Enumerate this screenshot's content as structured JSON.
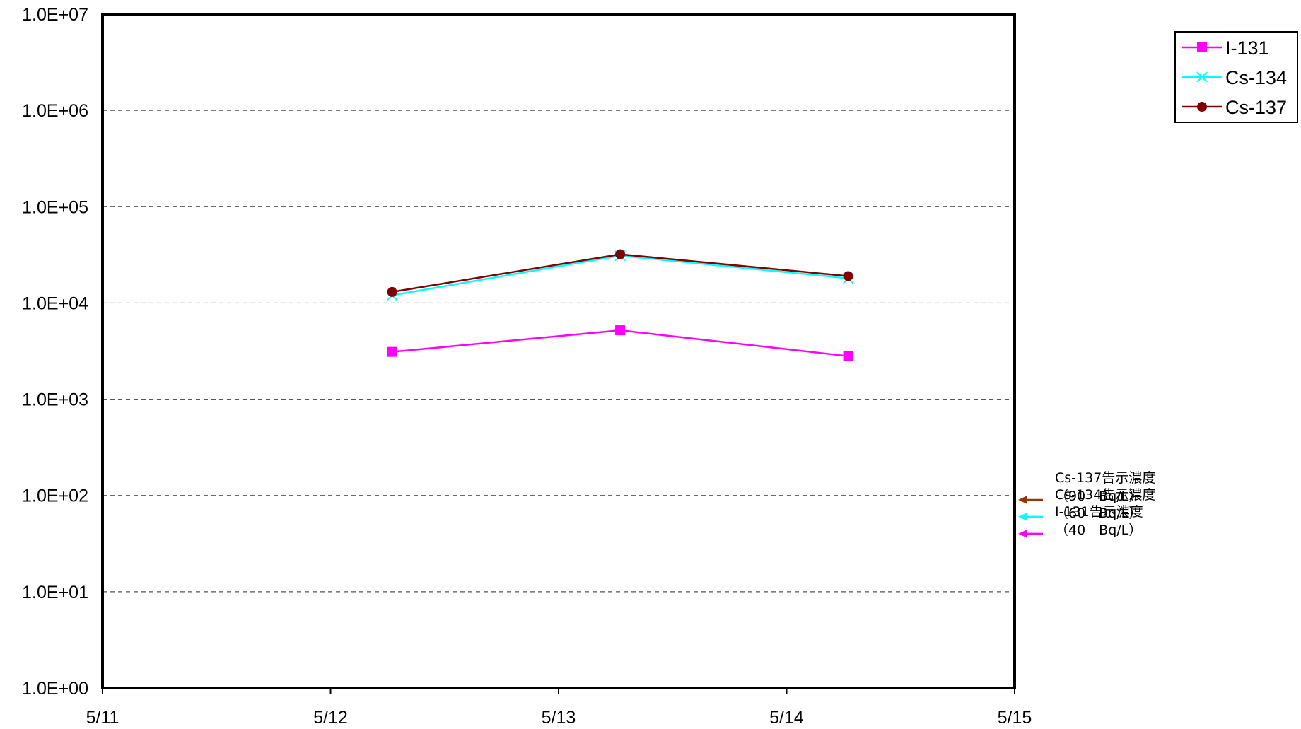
{
  "chart_data": {
    "type": "line",
    "y_scale": "log",
    "ylim": [
      1,
      10000000
    ],
    "y_ticks": [
      "1.0E+00",
      "1.0E+01",
      "1.0E+02",
      "1.0E+03",
      "1.0E+04",
      "1.0E+05",
      "1.0E+06",
      "1.0E+07"
    ],
    "x_ticks": [
      "5/11",
      "5/12",
      "5/13",
      "5/14",
      "5/15"
    ],
    "x": [
      "5/12",
      "5/13",
      "5/14"
    ],
    "grid": "horizontal dashed",
    "legend_position": "top-right",
    "series": [
      {
        "name": "I-131",
        "color": "#ff00ff",
        "marker": "square",
        "values": [
          3100,
          5200,
          2800
        ]
      },
      {
        "name": "Cs-134",
        "color": "#00ffff",
        "marker": "x",
        "values": [
          12000,
          31000,
          18000
        ]
      },
      {
        "name": "Cs-137",
        "color": "#800000",
        "marker": "circle",
        "values": [
          13000,
          32000,
          19000
        ]
      }
    ],
    "annotations": [
      {
        "series": "Cs-137",
        "label": "Cs-137告示濃度",
        "value_text": "（90　Bq/L）",
        "value": 90,
        "color": "#993300"
      },
      {
        "series": "Cs-134",
        "label": "Cs-134告示濃度",
        "value_text": "（60　Bq/L）",
        "value": 60,
        "color": "#00ffff"
      },
      {
        "series": "I-131",
        "label": "I-131告示濃度",
        "value_text": "（40　Bq/L）",
        "value": 40,
        "color": "#ff00ff"
      }
    ]
  }
}
